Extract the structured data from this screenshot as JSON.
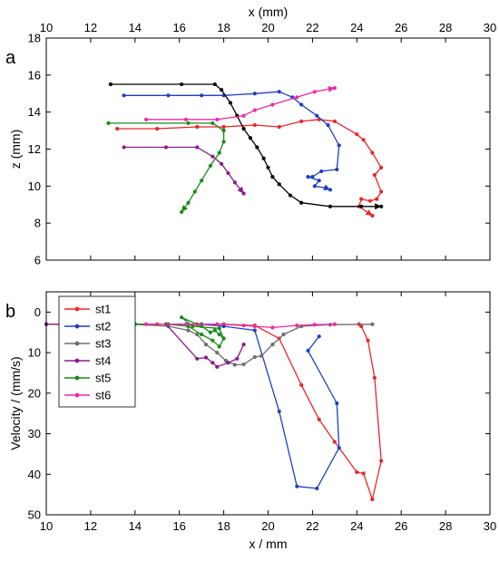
{
  "figure": {
    "panel_a_letter": "a",
    "panel_b_letter": "b"
  },
  "chart_data": [
    {
      "type": "line",
      "panel": "a",
      "xlabel": "x (mm)",
      "ylabel": "z (mm)",
      "xlim": [
        10,
        30
      ],
      "ylim": [
        18,
        6
      ],
      "y_inverted": true,
      "x_ticks": [
        "10",
        "12",
        "14",
        "16",
        "18",
        "20",
        "22",
        "24",
        "26",
        "28",
        "30"
      ],
      "y_ticks": [
        "6",
        "8",
        "10",
        "12",
        "14",
        "16",
        "18"
      ],
      "x_axis_position": "top",
      "series": [
        {
          "key": "st1",
          "color": "#e8262b",
          "points": [
            [
              13.2,
              13.1
            ],
            [
              15.0,
              13.1
            ],
            [
              16.8,
              13.2
            ],
            [
              18.0,
              13.2
            ],
            [
              19.4,
              13.3
            ],
            [
              20.5,
              13.2
            ],
            [
              21.5,
              13.5
            ],
            [
              22.3,
              13.6
            ],
            [
              23.0,
              13.5
            ],
            [
              24.0,
              12.8
            ],
            [
              24.3,
              12.5
            ],
            [
              24.7,
              11.8
            ],
            [
              25.1,
              11.0
            ],
            [
              24.8,
              10.6
            ],
            [
              25.1,
              9.7
            ],
            [
              24.9,
              9.3
            ],
            [
              24.6,
              9.2
            ],
            [
              24.2,
              9.3
            ],
            [
              24.1,
              8.9
            ],
            [
              24.7,
              8.4
            ]
          ]
        },
        {
          "key": "st2",
          "color": "#1f3fc0",
          "points": [
            [
              13.5,
              14.9
            ],
            [
              15.5,
              14.9
            ],
            [
              17.0,
              14.9
            ],
            [
              18.0,
              14.9
            ],
            [
              19.4,
              15.0
            ],
            [
              20.5,
              15.1
            ],
            [
              21.1,
              14.8
            ],
            [
              21.5,
              14.4
            ],
            [
              22.2,
              13.8
            ],
            [
              22.7,
              13.3
            ],
            [
              23.2,
              12.2
            ],
            [
              23.1,
              10.9
            ],
            [
              22.4,
              10.8
            ],
            [
              22.0,
              10.5
            ],
            [
              21.8,
              10.5
            ],
            [
              22.3,
              10.3
            ],
            [
              22.1,
              10.0
            ],
            [
              22.6,
              9.9
            ],
            [
              22.8,
              9.8
            ]
          ]
        },
        {
          "key": "st3",
          "color": "#000000",
          "points": [
            [
              12.9,
              15.5
            ],
            [
              16.1,
              15.5
            ],
            [
              17.6,
              15.5
            ],
            [
              17.9,
              15.2
            ],
            [
              18.3,
              14.5
            ],
            [
              18.6,
              13.8
            ],
            [
              18.9,
              13.1
            ],
            [
              19.2,
              12.6
            ],
            [
              19.5,
              12.1
            ],
            [
              19.8,
              11.5
            ],
            [
              20.0,
              11.0
            ],
            [
              20.2,
              10.5
            ],
            [
              20.5,
              10.1
            ],
            [
              21.0,
              9.5
            ],
            [
              21.5,
              9.1
            ],
            [
              22.8,
              8.9
            ],
            [
              24.2,
              8.9
            ],
            [
              25.1,
              8.9
            ]
          ]
        },
        {
          "key": "st4",
          "color": "#8b1a8b",
          "points": [
            [
              13.5,
              12.1
            ],
            [
              15.4,
              12.1
            ],
            [
              16.8,
              12.1
            ],
            [
              17.5,
              11.6
            ],
            [
              17.9,
              11.2
            ],
            [
              18.2,
              10.7
            ],
            [
              18.5,
              10.2
            ],
            [
              18.9,
              9.6
            ]
          ]
        },
        {
          "key": "st5",
          "color": "#1a8a1a",
          "points": [
            [
              12.8,
              13.4
            ],
            [
              16.4,
              13.4
            ],
            [
              17.5,
              13.4
            ],
            [
              18.0,
              13.0
            ],
            [
              18.0,
              12.4
            ],
            [
              17.8,
              11.8
            ],
            [
              17.4,
              11.1
            ],
            [
              17.0,
              10.3
            ],
            [
              16.7,
              9.7
            ],
            [
              16.4,
              9.1
            ],
            [
              16.1,
              8.6
            ]
          ]
        },
        {
          "key": "st6",
          "color": "#ee2ba5",
          "points": [
            [
              14.5,
              13.6
            ],
            [
              16.3,
              13.6
            ],
            [
              17.7,
              13.6
            ],
            [
              18.9,
              13.8
            ],
            [
              19.4,
              14.1
            ],
            [
              20.2,
              14.4
            ],
            [
              21.3,
              14.8
            ],
            [
              22.1,
              15.1
            ],
            [
              23.0,
              15.3
            ]
          ]
        }
      ]
    },
    {
      "type": "line",
      "panel": "b",
      "xlabel": "x / mm",
      "ylabel": "Velocity / (mm/s)",
      "xlim": [
        10,
        30
      ],
      "ylim": [
        -5,
        50
      ],
      "x_ticks": [
        "10",
        "12",
        "14",
        "16",
        "18",
        "20",
        "22",
        "24",
        "26",
        "28",
        "30"
      ],
      "y_ticks": [
        "0",
        "10",
        "20",
        "30",
        "40",
        "50"
      ],
      "legend_position": "top-left",
      "series": [
        {
          "name": "st1",
          "color": "#e8262b",
          "points": [
            [
              10,
              3
            ],
            [
              13.2,
              3
            ],
            [
              15,
              3
            ],
            [
              16.8,
              3
            ],
            [
              18,
              3
            ],
            [
              19.4,
              3.3
            ],
            [
              20.5,
              6.5
            ],
            [
              21.5,
              18
            ],
            [
              22.3,
              26.5
            ],
            [
              23,
              32
            ],
            [
              24,
              39.5
            ],
            [
              24.3,
              39.8
            ],
            [
              24.7,
              46.2
            ],
            [
              25.1,
              36.7
            ],
            [
              24.8,
              16.2
            ],
            [
              24.5,
              7
            ],
            [
              24.2,
              3.5
            ],
            [
              24.1,
              3
            ]
          ]
        },
        {
          "name": "st2",
          "color": "#1f3fc0",
          "points": [
            [
              10,
              3
            ],
            [
              13.5,
              3
            ],
            [
              15.5,
              3
            ],
            [
              17,
              3
            ],
            [
              18,
              3.5
            ],
            [
              19.4,
              4.5
            ],
            [
              20.5,
              24.5
            ],
            [
              21.3,
              43
            ],
            [
              22.2,
              43.5
            ],
            [
              23.2,
              33.5
            ],
            [
              23.1,
              22.5
            ],
            [
              21.8,
              9.5
            ],
            [
              22.3,
              6
            ]
          ]
        },
        {
          "name": "st3",
          "color": "#6e6e6e",
          "points": [
            [
              10,
              3
            ],
            [
              12.9,
              3
            ],
            [
              14,
              3
            ],
            [
              15.5,
              3.5
            ],
            [
              16.4,
              4.5
            ],
            [
              16.8,
              5.5
            ],
            [
              17.2,
              8
            ],
            [
              17.7,
              10
            ],
            [
              18.1,
              12
            ],
            [
              18.5,
              13
            ],
            [
              18.9,
              12.9
            ],
            [
              19.4,
              11.1
            ],
            [
              19.7,
              10.8
            ],
            [
              20.2,
              8
            ],
            [
              20.7,
              5.5
            ],
            [
              21.5,
              3.5
            ],
            [
              22.8,
              3.1
            ],
            [
              24.7,
              3
            ]
          ]
        },
        {
          "name": "st4",
          "color": "#8b1a8b",
          "points": [
            [
              10,
              3
            ],
            [
              11,
              3
            ],
            [
              12.2,
              3
            ],
            [
              13,
              3
            ],
            [
              13.5,
              3
            ],
            [
              15.4,
              3
            ],
            [
              16.8,
              11.5
            ],
            [
              17.2,
              11.2
            ],
            [
              17.5,
              12.5
            ],
            [
              17.7,
              13.5
            ],
            [
              18.2,
              12.5
            ],
            [
              18.6,
              11.5
            ],
            [
              18.9,
              8
            ]
          ]
        },
        {
          "name": "st5",
          "color": "#1a8a1a",
          "points": [
            [
              12.8,
              3
            ],
            [
              14,
              3
            ],
            [
              15.5,
              3
            ],
            [
              16.4,
              3.5
            ],
            [
              17,
              5.5
            ],
            [
              17.5,
              7
            ],
            [
              17.8,
              8.5
            ],
            [
              18,
              6.5
            ],
            [
              17.8,
              5.5
            ],
            [
              17.6,
              4.5
            ],
            [
              17.4,
              5
            ],
            [
              17.0,
              3.5
            ],
            [
              16.1,
              1.3
            ],
            [
              16.6,
              3.5
            ],
            [
              17.8,
              4
            ],
            [
              18,
              6.5
            ]
          ]
        },
        {
          "name": "st6",
          "color": "#ee2ba5",
          "points": [
            [
              14.5,
              3
            ],
            [
              16.3,
              3
            ],
            [
              17.7,
              3
            ],
            [
              18.9,
              3.3
            ],
            [
              19.4,
              3.5
            ],
            [
              20.2,
              3.8
            ],
            [
              21.3,
              3.3
            ],
            [
              22.1,
              3.1
            ],
            [
              23,
              3
            ]
          ]
        }
      ]
    }
  ]
}
